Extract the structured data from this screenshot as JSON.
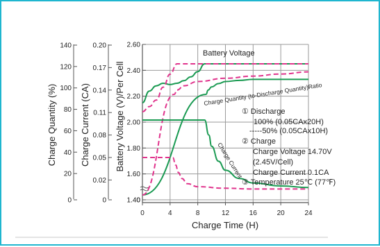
{
  "colors": {
    "frame": "#1fb6cf",
    "grid": "#9a9a9a",
    "axis": "#555555",
    "green": "#1a9a52",
    "pink": "#e0338c",
    "rule": "#c8c8c8"
  },
  "chart_data": {
    "type": "line",
    "xlabel": "Charge Time (H)",
    "x_ticks": [
      "0",
      "4",
      "8",
      "12",
      "16",
      "20",
      "24"
    ],
    "xlim": [
      0,
      24
    ],
    "axes": {
      "charge_quantity": {
        "label": "Charge Quantity (%)",
        "ticks": [
          "0",
          "20",
          "40",
          "60",
          "80",
          "100",
          "120",
          "140"
        ]
      },
      "charge_current": {
        "label": "Charge Current (CA)",
        "ticks": [
          "0",
          "0.02",
          "0.05",
          "0.08",
          "0.11",
          "0.14",
          "0.17",
          "0.20"
        ]
      },
      "battery_voltage": {
        "label": "Battery Voltage (V)/Per Cell",
        "ticks": [
          "0",
          "1.40",
          "1.60",
          "1.80",
          "2.00",
          "2.20",
          "2.40",
          "2.60"
        ]
      }
    },
    "series": [
      {
        "style": "solid",
        "color_key": "green",
        "quantity": "battery_voltage",
        "x": [
          0,
          1,
          2,
          3,
          4,
          5,
          6,
          7,
          8,
          9,
          24
        ],
        "y": [
          2.15,
          2.24,
          2.28,
          2.3,
          2.29,
          2.3,
          2.32,
          2.35,
          2.39,
          2.45,
          2.45
        ]
      },
      {
        "style": "dashed",
        "color_key": "pink",
        "quantity": "battery_voltage",
        "x": [
          0,
          1,
          2,
          3,
          4,
          5,
          9,
          24
        ],
        "y": [
          2.08,
          2.12,
          2.17,
          2.27,
          2.37,
          2.45,
          2.45,
          2.45
        ]
      },
      {
        "style": "solid",
        "color_key": "green",
        "quantity": "charge_quantity",
        "x": [
          0,
          9.2,
          9.5,
          10,
          11,
          12,
          14,
          16,
          20,
          24
        ],
        "y": [
          0,
          94,
          98,
          101,
          104,
          106,
          107,
          108,
          108,
          108
        ]
      },
      {
        "style": "dashed",
        "color_key": "pink",
        "quantity": "charge_quantity",
        "x": [
          0,
          4.6,
          5,
          6,
          8,
          12,
          16,
          20,
          24
        ],
        "y": [
          0,
          94,
          98,
          102,
          106,
          109,
          111,
          113,
          115
        ]
      },
      {
        "style": "solid",
        "color_key": "green",
        "quantity": "charge_current",
        "x": [
          0,
          9,
          9.6,
          10,
          11,
          12,
          14,
          16,
          20,
          24
        ],
        "y": [
          0.1,
          0.1,
          0.08,
          0.065,
          0.045,
          0.033,
          0.022,
          0.016,
          0.012,
          0.01
        ]
      },
      {
        "style": "dashed",
        "color_key": "pink",
        "quantity": "charge_current",
        "x": [
          0,
          4.4,
          4.8,
          5.2,
          5.7,
          6.5,
          8,
          12,
          16,
          20,
          24
        ],
        "y": [
          0.05,
          0.05,
          0.04,
          0.03,
          0.022,
          0.015,
          0.011,
          0.009,
          0.008,
          0.008,
          0.008
        ]
      }
    ],
    "annotations": {
      "battery_voltage": "Battery Voltage",
      "charge_ratio": "Charge Quantity (to-Discharge Quantity)Ratio",
      "charge_current": "Charge Current",
      "discharge_title": "① Discharge",
      "discharge_100": "100% (0.05CAx20H)",
      "discharge_50": "-----50% (0.05CAx10H)",
      "charge_title": "② Charge",
      "charge_voltage": "Charge Voltage 14.70V",
      "charge_cell": "(2.45V/Cell)",
      "charge_current_note": "Charge Current 0.1CA",
      "temperature": "③ Temperature 25℃ (77℉)"
    }
  }
}
